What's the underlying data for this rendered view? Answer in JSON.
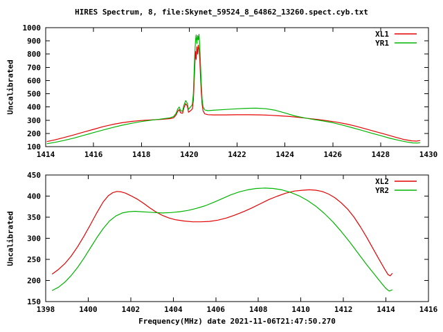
{
  "title": "HIRES Spectrum, 8, file:Skynet_59524_8_64862_13260.spect.cyb.txt",
  "colors": {
    "xl_line": "#e40000",
    "yr_line": "#00b400",
    "axis": "#000000",
    "background": "#ffffff"
  },
  "chart_data": [
    {
      "type": "line",
      "name": "top-spectrum-plot",
      "title": "",
      "xlabel": "",
      "ylabel": "Uncalibrated",
      "xlim": [
        1414,
        1430
      ],
      "ylim": [
        100,
        1000
      ],
      "xticks": [
        1414,
        1416,
        1418,
        1420,
        1422,
        1424,
        1426,
        1428,
        1430
      ],
      "yticks": [
        100,
        200,
        300,
        400,
        500,
        600,
        700,
        800,
        900,
        1000
      ],
      "grid": false,
      "legend_position": "top-right",
      "series": [
        {
          "name": "XL1",
          "color": "#e40000",
          "points": [
            [
              1414.05,
              138
            ],
            [
              1414.4,
              152
            ],
            [
              1414.8,
              170
            ],
            [
              1415.2,
              190
            ],
            [
              1415.6,
              211
            ],
            [
              1416.0,
              231
            ],
            [
              1416.4,
              251
            ],
            [
              1416.8,
              268
            ],
            [
              1417.2,
              281
            ],
            [
              1417.6,
              291
            ],
            [
              1418.0,
              298
            ],
            [
              1418.4,
              302
            ],
            [
              1418.8,
              306
            ],
            [
              1419.2,
              312
            ],
            [
              1419.35,
              318
            ],
            [
              1419.45,
              340
            ],
            [
              1419.52,
              368
            ],
            [
              1419.58,
              380
            ],
            [
              1419.64,
              356
            ],
            [
              1419.72,
              352
            ],
            [
              1419.78,
              395
            ],
            [
              1419.85,
              425
            ],
            [
              1419.92,
              408
            ],
            [
              1419.97,
              360
            ],
            [
              1420.03,
              368
            ],
            [
              1420.09,
              378
            ],
            [
              1420.13,
              386
            ],
            [
              1420.17,
              450
            ],
            [
              1420.2,
              560
            ],
            [
              1420.23,
              700
            ],
            [
              1420.26,
              820
            ],
            [
              1420.29,
              760
            ],
            [
              1420.32,
              855
            ],
            [
              1420.35,
              800
            ],
            [
              1420.38,
              868
            ],
            [
              1420.41,
              840
            ],
            [
              1420.44,
              762
            ],
            [
              1420.47,
              640
            ],
            [
              1420.5,
              520
            ],
            [
              1420.54,
              420
            ],
            [
              1420.58,
              370
            ],
            [
              1420.65,
              348
            ],
            [
              1420.78,
              342
            ],
            [
              1421.0,
              340
            ],
            [
              1421.5,
              340
            ],
            [
              1422.0,
              341
            ],
            [
              1422.5,
              341
            ],
            [
              1423.0,
              340
            ],
            [
              1423.4,
              337
            ],
            [
              1423.8,
              333
            ],
            [
              1424.2,
              328
            ],
            [
              1424.6,
              321
            ],
            [
              1425.0,
              313
            ],
            [
              1425.4,
              305
            ],
            [
              1425.8,
              295
            ],
            [
              1426.2,
              284
            ],
            [
              1426.6,
              270
            ],
            [
              1427.0,
              253
            ],
            [
              1427.4,
              233
            ],
            [
              1427.8,
              213
            ],
            [
              1428.2,
              193
            ],
            [
              1428.6,
              172
            ],
            [
              1429.0,
              153
            ],
            [
              1429.3,
              144
            ],
            [
              1429.5,
              142
            ],
            [
              1429.65,
              146
            ]
          ]
        },
        {
          "name": "YR1",
          "color": "#00b400",
          "points": [
            [
              1414.05,
              122
            ],
            [
              1414.4,
              133
            ],
            [
              1414.8,
              148
            ],
            [
              1415.2,
              166
            ],
            [
              1415.6,
              186
            ],
            [
              1416.0,
              206
            ],
            [
              1416.4,
              226
            ],
            [
              1416.8,
              245
            ],
            [
              1417.2,
              262
            ],
            [
              1417.6,
              277
            ],
            [
              1418.0,
              290
            ],
            [
              1418.4,
              300
            ],
            [
              1418.8,
              308
            ],
            [
              1419.2,
              318
            ],
            [
              1419.35,
              328
            ],
            [
              1419.45,
              352
            ],
            [
              1419.52,
              385
            ],
            [
              1419.58,
              400
            ],
            [
              1419.64,
              372
            ],
            [
              1419.72,
              368
            ],
            [
              1419.78,
              415
            ],
            [
              1419.85,
              448
            ],
            [
              1419.92,
              428
            ],
            [
              1419.97,
              382
            ],
            [
              1420.03,
              395
            ],
            [
              1420.09,
              408
            ],
            [
              1420.13,
              422
            ],
            [
              1420.17,
              500
            ],
            [
              1420.2,
              640
            ],
            [
              1420.23,
              790
            ],
            [
              1420.26,
              900
            ],
            [
              1420.29,
              945
            ],
            [
              1420.32,
              880
            ],
            [
              1420.35,
              940
            ],
            [
              1420.38,
              908
            ],
            [
              1420.41,
              950
            ],
            [
              1420.44,
              860
            ],
            [
              1420.47,
              730
            ],
            [
              1420.5,
              590
            ],
            [
              1420.54,
              460
            ],
            [
              1420.58,
              400
            ],
            [
              1420.65,
              378
            ],
            [
              1420.78,
              372
            ],
            [
              1421.0,
              375
            ],
            [
              1421.5,
              381
            ],
            [
              1422.0,
              386
            ],
            [
              1422.4,
              390
            ],
            [
              1422.8,
              391
            ],
            [
              1423.2,
              387
            ],
            [
              1423.6,
              375
            ],
            [
              1424.0,
              355
            ],
            [
              1424.4,
              333
            ],
            [
              1424.8,
              318
            ],
            [
              1425.2,
              305
            ],
            [
              1425.6,
              294
            ],
            [
              1426.0,
              281
            ],
            [
              1426.4,
              263
            ],
            [
              1426.8,
              244
            ],
            [
              1427.2,
              224
            ],
            [
              1427.6,
              203
            ],
            [
              1428.0,
              183
            ],
            [
              1428.4,
              163
            ],
            [
              1428.8,
              146
            ],
            [
              1429.1,
              135
            ],
            [
              1429.35,
              128
            ],
            [
              1429.55,
              127
            ],
            [
              1429.65,
              130
            ]
          ]
        }
      ]
    },
    {
      "type": "line",
      "name": "bottom-spectrum-plot",
      "title": "",
      "xlabel": "Frequency(MHz) date 2021-11-06T21:47:50.270",
      "ylabel": "Uncalibrated",
      "xlim": [
        1398,
        1416
      ],
      "ylim": [
        150,
        450
      ],
      "xticks": [
        1398,
        1400,
        1402,
        1404,
        1406,
        1408,
        1410,
        1412,
        1414,
        1416
      ],
      "yticks": [
        150,
        200,
        250,
        300,
        350,
        400,
        450
      ],
      "grid": false,
      "legend_position": "top-right",
      "series": [
        {
          "name": "XL2",
          "color": "#e40000",
          "points": [
            [
              1398.3,
              215
            ],
            [
              1398.6,
              226
            ],
            [
              1398.9,
              240
            ],
            [
              1399.2,
              258
            ],
            [
              1399.5,
              280
            ],
            [
              1399.8,
              305
            ],
            [
              1400.1,
              332
            ],
            [
              1400.4,
              360
            ],
            [
              1400.7,
              386
            ],
            [
              1400.95,
              401
            ],
            [
              1401.15,
              408
            ],
            [
              1401.35,
              411
            ],
            [
              1401.55,
              410
            ],
            [
              1401.75,
              407
            ],
            [
              1402.0,
              401
            ],
            [
              1402.3,
              393
            ],
            [
              1402.6,
              383
            ],
            [
              1402.9,
              372
            ],
            [
              1403.2,
              362
            ],
            [
              1403.5,
              354
            ],
            [
              1403.8,
              348
            ],
            [
              1404.1,
              344
            ],
            [
              1404.5,
              341
            ],
            [
              1404.9,
              339
            ],
            [
              1405.3,
              339
            ],
            [
              1405.7,
              340
            ],
            [
              1406.1,
              343
            ],
            [
              1406.5,
              348
            ],
            [
              1406.9,
              355
            ],
            [
              1407.3,
              363
            ],
            [
              1407.7,
              372
            ],
            [
              1408.1,
              382
            ],
            [
              1408.5,
              392
            ],
            [
              1408.9,
              400
            ],
            [
              1409.3,
              407
            ],
            [
              1409.7,
              412
            ],
            [
              1410.1,
              414
            ],
            [
              1410.4,
              415
            ],
            [
              1410.7,
              414
            ],
            [
              1411.0,
              411
            ],
            [
              1411.3,
              405
            ],
            [
              1411.6,
              396
            ],
            [
              1411.9,
              384
            ],
            [
              1412.2,
              369
            ],
            [
              1412.5,
              350
            ],
            [
              1412.8,
              327
            ],
            [
              1413.1,
              302
            ],
            [
              1413.4,
              275
            ],
            [
              1413.7,
              248
            ],
            [
              1413.95,
              226
            ],
            [
              1414.1,
              214
            ],
            [
              1414.2,
              211
            ],
            [
              1414.3,
              217
            ]
          ]
        },
        {
          "name": "YR2",
          "color": "#00b400",
          "points": [
            [
              1398.3,
              176
            ],
            [
              1398.6,
              184
            ],
            [
              1398.9,
              196
            ],
            [
              1399.2,
              212
            ],
            [
              1399.5,
              231
            ],
            [
              1399.8,
              253
            ],
            [
              1400.1,
              277
            ],
            [
              1400.4,
              301
            ],
            [
              1400.7,
              323
            ],
            [
              1401.0,
              341
            ],
            [
              1401.3,
              353
            ],
            [
              1401.6,
              360
            ],
            [
              1401.9,
              363
            ],
            [
              1402.2,
              364
            ],
            [
              1402.5,
              363
            ],
            [
              1402.8,
              362
            ],
            [
              1403.1,
              361
            ],
            [
              1403.5,
              360
            ],
            [
              1403.9,
              361
            ],
            [
              1404.3,
              363
            ],
            [
              1404.7,
              366
            ],
            [
              1405.1,
              371
            ],
            [
              1405.5,
              377
            ],
            [
              1405.9,
              385
            ],
            [
              1406.3,
              394
            ],
            [
              1406.7,
              403
            ],
            [
              1407.1,
              410
            ],
            [
              1407.5,
              415
            ],
            [
              1407.9,
              418
            ],
            [
              1408.3,
              419
            ],
            [
              1408.7,
              418
            ],
            [
              1409.1,
              415
            ],
            [
              1409.5,
              409
            ],
            [
              1409.9,
              401
            ],
            [
              1410.3,
              390
            ],
            [
              1410.7,
              376
            ],
            [
              1411.1,
              359
            ],
            [
              1411.5,
              339
            ],
            [
              1411.9,
              316
            ],
            [
              1412.3,
              291
            ],
            [
              1412.7,
              264
            ],
            [
              1413.1,
              237
            ],
            [
              1413.5,
              212
            ],
            [
              1413.8,
              193
            ],
            [
              1414.0,
              181
            ],
            [
              1414.15,
              175
            ],
            [
              1414.3,
              178
            ]
          ]
        }
      ]
    }
  ]
}
